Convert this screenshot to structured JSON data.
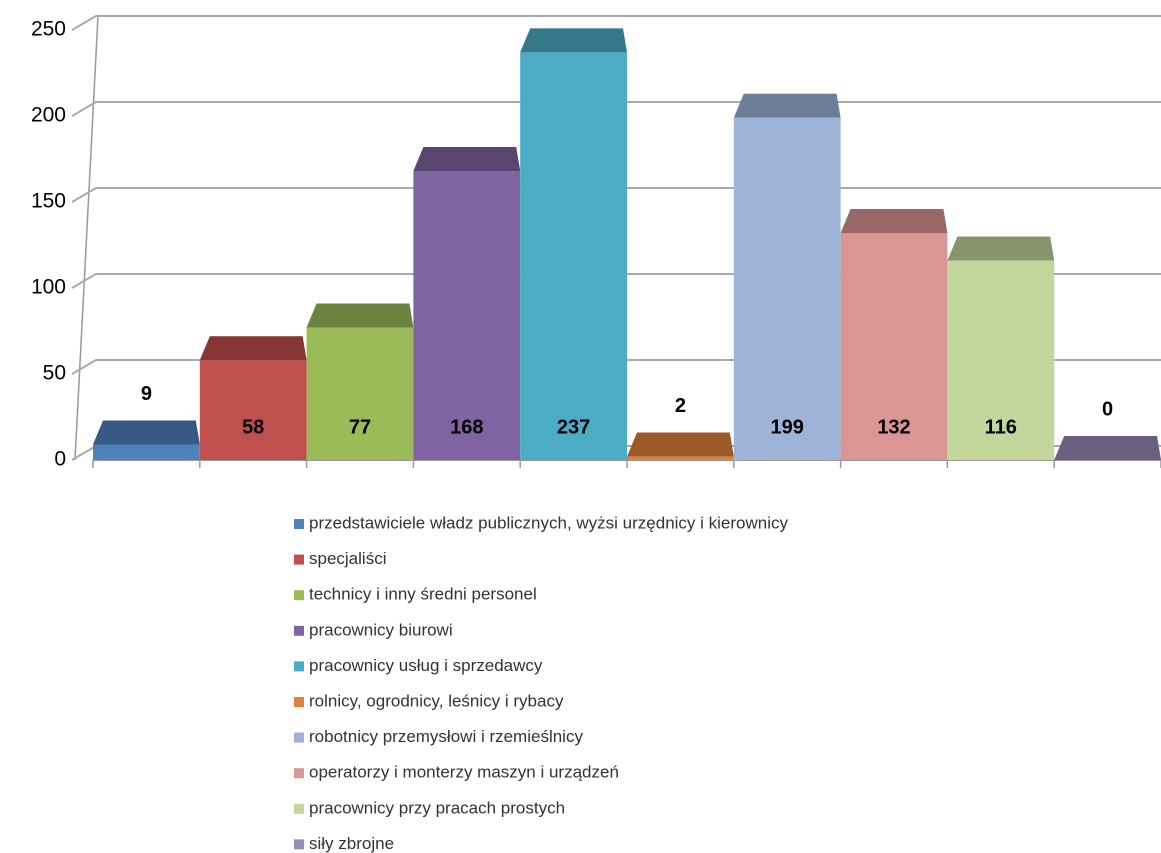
{
  "chart_data": {
    "type": "bar3d",
    "categories": [
      null
    ],
    "series": [
      {
        "name": "przedstawiciele władz publicznych, wyżsi urzędnicy i kierownicy",
        "color": "#4f81bd",
        "values": [
          9
        ]
      },
      {
        "name": "specjaliści",
        "color": "#c0504d",
        "values": [
          58
        ]
      },
      {
        "name": "technicy i inny średni personel",
        "color": "#9bbb59",
        "values": [
          77
        ]
      },
      {
        "name": "pracownicy biurowi",
        "color": "#8064a2",
        "values": [
          168
        ]
      },
      {
        "name": "pracownicy usług i sprzedawcy",
        "color": "#4bacc6",
        "values": [
          237
        ]
      },
      {
        "name": "rolnicy, ogrodnicy, leśnicy i rybacy",
        "color": "#e0823c",
        "values": [
          2
        ]
      },
      {
        "name": "robotnicy przemysłowi i rzemieślnicy",
        "color": "#9db3d8",
        "values": [
          199
        ]
      },
      {
        "name": "operatorzy i monterzy maszyn i urządzeń",
        "color": "#d99694",
        "values": [
          132
        ]
      },
      {
        "name": "pracownicy przy pracach prostych",
        "color": "#c3d69b",
        "values": [
          116
        ]
      },
      {
        "name": "siły zbrojne",
        "color": "#9a8cb5",
        "values": [
          0
        ]
      }
    ],
    "ylim": [
      0,
      250
    ],
    "yticks": [
      0,
      50,
      100,
      150,
      200,
      250
    ],
    "grid": true,
    "legend": "bottom"
  }
}
